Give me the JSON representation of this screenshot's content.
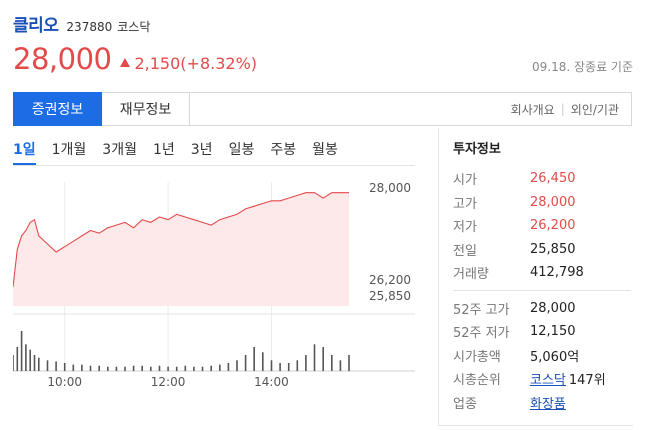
{
  "stock": {
    "name": "클리오",
    "code": "237880",
    "market": "코스닥"
  },
  "quote": {
    "price": "28,000",
    "change": "2,150(+8.32%)",
    "basis": "09.18. 장종료 기준"
  },
  "tabs": {
    "items": [
      "증권정보",
      "재무정보"
    ],
    "right": [
      "회사개요",
      "외인/기관"
    ]
  },
  "periods": [
    "1일",
    "1개월",
    "3개월",
    "1년",
    "3년",
    "일봉",
    "주봉",
    "월봉"
  ],
  "info": {
    "title": "투자정보",
    "rows1": [
      {
        "label": "시가",
        "value": "26,450",
        "red": true
      },
      {
        "label": "고가",
        "value": "28,000",
        "red": true
      },
      {
        "label": "저가",
        "value": "26,200",
        "red": true
      },
      {
        "label": "전일",
        "value": "25,850",
        "red": false
      },
      {
        "label": "거래량",
        "value": "412,798",
        "red": false
      }
    ],
    "rows2": [
      {
        "label": "52주 고가",
        "value": "28,000"
      },
      {
        "label": "52주 저가",
        "value": "12,150"
      },
      {
        "label": "시가총액",
        "value": "5,060억"
      }
    ],
    "rank": {
      "label": "시총순위",
      "link": "코스닥",
      "value": "147위"
    },
    "industry": {
      "label": "업종",
      "value": "화장품"
    }
  },
  "colors": {
    "up": "#e34a4a",
    "accent": "#1c6de5",
    "name": "#1a4fb8"
  },
  "chart_data": {
    "type": "line",
    "ylim": [
      25850,
      28000
    ],
    "y_ticks": [
      "28,000",
      "26,200",
      "25,850"
    ],
    "x_ticks": [
      "10:00",
      "12:00",
      "14:00"
    ],
    "price_series": {
      "x": [
        "09:00",
        "09:05",
        "09:10",
        "09:15",
        "09:20",
        "09:25",
        "09:30",
        "09:40",
        "09:50",
        "10:00",
        "10:10",
        "10:20",
        "10:30",
        "10:40",
        "10:50",
        "11:00",
        "11:10",
        "11:20",
        "11:30",
        "11:40",
        "11:50",
        "12:00",
        "12:10",
        "12:20",
        "12:30",
        "12:40",
        "12:50",
        "13:00",
        "13:10",
        "13:20",
        "13:30",
        "13:40",
        "13:50",
        "14:00",
        "14:10",
        "14:20",
        "14:30",
        "14:40",
        "14:50",
        "15:00",
        "15:10",
        "15:20",
        "15:30"
      ],
      "values": [
        26200,
        26900,
        27150,
        27250,
        27400,
        27450,
        27150,
        27000,
        26850,
        26950,
        27050,
        27150,
        27250,
        27200,
        27300,
        27350,
        27400,
        27300,
        27450,
        27400,
        27500,
        27450,
        27550,
        27500,
        27450,
        27400,
        27350,
        27450,
        27500,
        27550,
        27650,
        27700,
        27750,
        27800,
        27800,
        27850,
        27900,
        27950,
        27950,
        27850,
        27950,
        27950,
        27950
      ]
    },
    "volume_series": {
      "values": [
        30,
        45,
        75,
        50,
        40,
        30,
        25,
        20,
        18,
        15,
        12,
        12,
        10,
        10,
        8,
        8,
        8,
        10,
        10,
        8,
        10,
        8,
        8,
        10,
        8,
        8,
        10,
        12,
        15,
        20,
        30,
        45,
        35,
        20,
        15,
        15,
        20,
        30,
        50,
        45,
        30,
        20,
        30
      ]
    }
  }
}
